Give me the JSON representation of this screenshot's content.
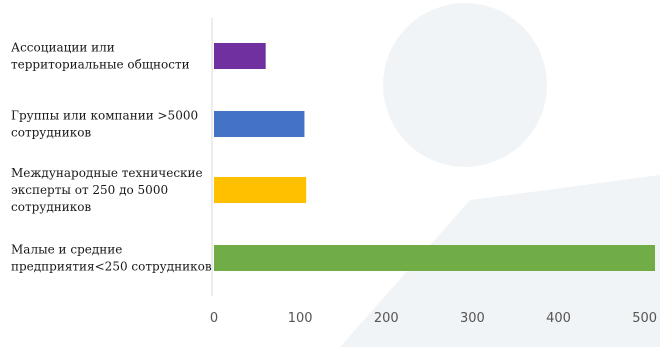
{
  "chart_data": {
    "type": "bar",
    "orientation": "horizontal",
    "categories": [
      [
        "Ассоциации или",
        "территориальные общности"
      ],
      [
        "Группы или компании >5000",
        "сотрудников"
      ],
      [
        "Международные технические",
        "эксперты от 250 до 5000",
        "сотрудников"
      ],
      [
        "Малые и средние",
        "предприятия<250 сотрудников"
      ]
    ],
    "values": [
      60,
      105,
      107,
      512
    ],
    "colors": [
      "#7030a0",
      "#4472c4",
      "#ffc000",
      "#70ad47"
    ],
    "xlim": [
      0,
      512
    ],
    "xticks": [
      "0",
      "100",
      "200",
      "300",
      "400",
      "500"
    ],
    "grid": false,
    "legend": "none",
    "title": "",
    "xlabel": "",
    "ylabel": ""
  }
}
